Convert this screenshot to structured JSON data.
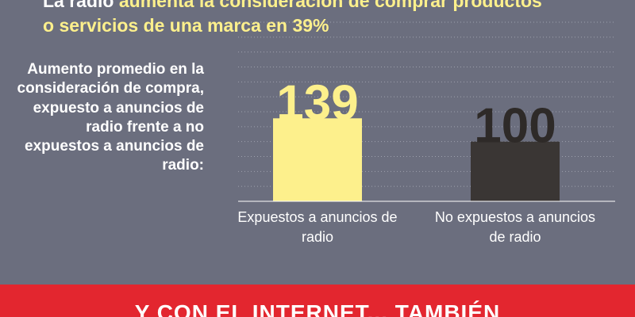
{
  "headline": {
    "part1": "La radio ",
    "part2": "aumenta la consideración de comprar productos",
    "part3": "o servicios de una marca en 39%"
  },
  "side_label": "Aumento promedio en la consideración de compra, expuesto a anuncios de radio frente a no expuestos a anuncios de radio:",
  "chart_data": {
    "type": "bar",
    "categories": [
      "Expuestos a anuncios de radio",
      "No expuestos a anuncios de radio"
    ],
    "values": [
      139,
      100
    ],
    "value_labels": [
      "139",
      "100"
    ],
    "ylim": [
      0,
      300
    ],
    "grid": true,
    "colors": {
      "bar_1": "#fdf08c",
      "bar_2": "#3a3634",
      "label_1": "#fdf08c",
      "label_2": "#2e2a28"
    }
  },
  "footer": {
    "text": "Y CON EL INTERNET... TAMBIÉN",
    "color": "#e3262f"
  }
}
